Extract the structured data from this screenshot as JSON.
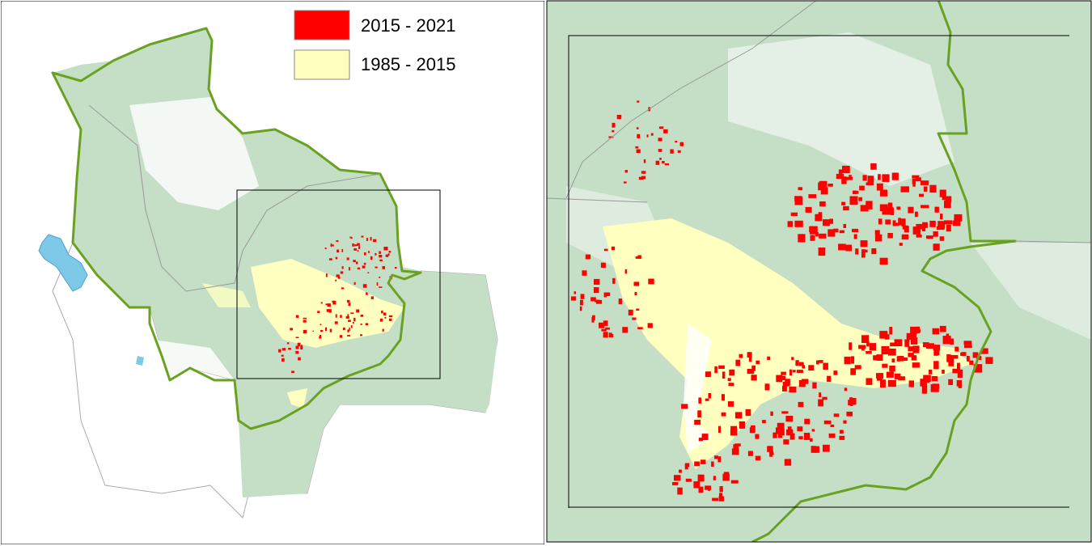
{
  "legend": {
    "items": [
      {
        "label": "2015 - 2021",
        "color": "#ff0000"
      },
      {
        "label": "1985 - 2015",
        "color": "#ffffc0"
      }
    ]
  }
}
